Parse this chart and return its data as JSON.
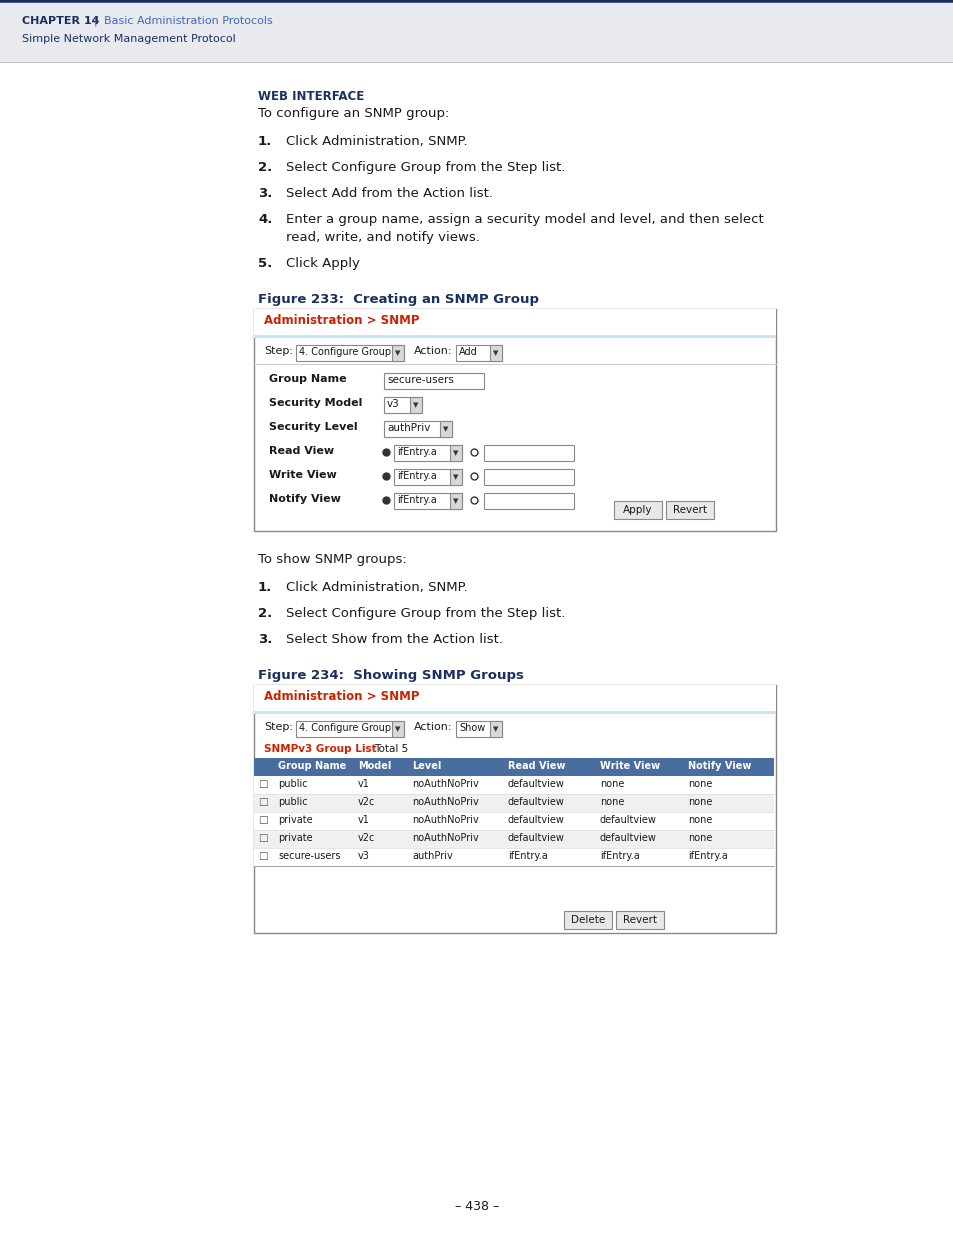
{
  "page_bg": "#ffffff",
  "header_bg": "#e8eaf0",
  "header_top_line_color": "#1a3060",
  "header_chapter": "CHAPTER 14",
  "header_pipe": "|",
  "header_title": "Basic Administration Protocols",
  "header_subtitle": "Simple Network Management Protocol",
  "header_text_color": "#1a3060",
  "header_title_color": "#3a6abf",
  "web_interface_label": "WEB INTERFACE",
  "intro_text": "To configure an SNMP group:",
  "steps1": [
    "Click Administration, SNMP.",
    "Select Configure Group from the Step list.",
    "Select Add from the Action list.",
    "Enter a group name, assign a security model and level, and then select",
    "read, write, and notify views.",
    "Click Apply"
  ],
  "steps1_nums": [
    "1.",
    "2.",
    "3.",
    "4.",
    "",
    "5."
  ],
  "steps1_indent": [
    false,
    false,
    false,
    false,
    true,
    false
  ],
  "figure233_title": "Figure 233:  Creating an SNMP Group",
  "figure234_title": "Figure 234:  Showing SNMP Groups",
  "intro_text2": "To show SNMP groups:",
  "steps2": [
    "Click Administration, SNMP.",
    "Select Configure Group from the Step list.",
    "Select Show from the Action list."
  ],
  "admin_snmp_color": "#cc2200",
  "table_header_bg": "#4a6da0",
  "table_row_bg1": "#ffffff",
  "table_row_bg2": "#f0f0f0",
  "light_blue_bar": "#c8e4f8",
  "page_number": "– 438 –",
  "snmpv3_rows": [
    [
      "public",
      "v1",
      "noAuthNoPriv",
      "defaultview",
      "none",
      "none"
    ],
    [
      "public",
      "v2c",
      "noAuthNoPriv",
      "defaultview",
      "none",
      "none"
    ],
    [
      "private",
      "v1",
      "noAuthNoPriv",
      "defaultview",
      "defaultview",
      "none"
    ],
    [
      "private",
      "v2c",
      "noAuthNoPriv",
      "defaultview",
      "defaultview",
      "none"
    ],
    [
      "secure-users",
      "v3",
      "authPriv",
      "ifEntry.a",
      "ifEntry.a",
      "ifEntry.a"
    ]
  ]
}
